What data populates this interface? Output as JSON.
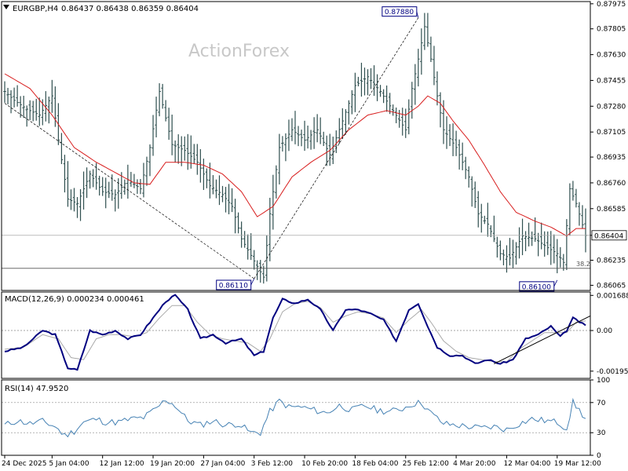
{
  "header": {
    "symbol": "EURGBP,H4",
    "ohlc": "0.86437 0.86438 0.86359 0.86404",
    "watermark": "ActionForex"
  },
  "colors": {
    "candle": "#2f4f4f",
    "ma": "#d81e1e",
    "macd": "#000080",
    "signal": "#a9a9a9",
    "rsi": "#4682b4",
    "grid": "#888888",
    "label_box": "#000080",
    "trendline": "#000000"
  },
  "chart_data": [
    {
      "type": "line",
      "name": "price",
      "label": "EURGBP,H4",
      "ylim": [
        0.8603,
        0.8799
      ],
      "y_ticks": [
        "0.87975",
        "0.87805",
        "0.87630",
        "0.87455",
        "0.87280",
        "0.87105",
        "0.86935",
        "0.86760",
        "0.86585",
        "0.86404",
        "0.86235",
        "0.86065"
      ],
      "y_tick_values": [
        0.87975,
        0.87805,
        0.8763,
        0.87455,
        0.8728,
        0.87105,
        0.86935,
        0.8676,
        0.86585,
        0.86404,
        0.86235,
        0.86065
      ],
      "current_price": "0.86404",
      "current_value": 0.86404,
      "x_labels": [
        "24 Dec 2025",
        "5 Jan 04:00",
        "12 Jan 12:00",
        "19 Jan 20:00",
        "27 Jan 04:00",
        "3 Feb 12:00",
        "10 Feb 20:00",
        "18 Feb 04:00",
        "25 Feb 12:00",
        "4 Mar 20:00",
        "12 Mar 04:00",
        "19 Mar 12:00"
      ],
      "x_label_index": [
        0,
        15,
        31,
        47,
        63,
        79,
        95,
        111,
        127,
        143,
        159,
        175
      ],
      "n_bars": 185,
      "close_anchors": [
        [
          0,
          0.8738
        ],
        [
          3,
          0.8732
        ],
        [
          7,
          0.8726
        ],
        [
          11,
          0.8722
        ],
        [
          15,
          0.8735
        ],
        [
          17,
          0.8705
        ],
        [
          20,
          0.8665
        ],
        [
          23,
          0.8662
        ],
        [
          27,
          0.8682
        ],
        [
          31,
          0.867
        ],
        [
          35,
          0.8668
        ],
        [
          39,
          0.8678
        ],
        [
          43,
          0.8672
        ],
        [
          46,
          0.87
        ],
        [
          49,
          0.8738
        ],
        [
          53,
          0.8702
        ],
        [
          57,
          0.8698
        ],
        [
          61,
          0.869
        ],
        [
          65,
          0.8674
        ],
        [
          69,
          0.8668
        ],
        [
          72,
          0.866
        ],
        [
          75,
          0.8638
        ],
        [
          79,
          0.8623
        ],
        [
          82,
          0.8612
        ],
        [
          84,
          0.8655
        ],
        [
          87,
          0.87
        ],
        [
          91,
          0.8712
        ],
        [
          95,
          0.8705
        ],
        [
          99,
          0.8712
        ],
        [
          103,
          0.8695
        ],
        [
          107,
          0.8718
        ],
        [
          111,
          0.8742
        ],
        [
          115,
          0.8748
        ],
        [
          119,
          0.8738
        ],
        [
          123,
          0.8725
        ],
        [
          127,
          0.8712
        ],
        [
          129,
          0.874
        ],
        [
          131,
          0.876
        ],
        [
          133,
          0.8782
        ],
        [
          135,
          0.876
        ],
        [
          137,
          0.8735
        ],
        [
          139,
          0.8712
        ],
        [
          143,
          0.87
        ],
        [
          147,
          0.868
        ],
        [
          150,
          0.8655
        ],
        [
          153,
          0.8648
        ],
        [
          157,
          0.8628
        ],
        [
          160,
          0.8625
        ],
        [
          164,
          0.864
        ],
        [
          168,
          0.8638
        ],
        [
          172,
          0.8632
        ],
        [
          175,
          0.8628
        ],
        [
          177,
          0.8622
        ],
        [
          179,
          0.8672
        ],
        [
          181,
          0.8662
        ],
        [
          184,
          0.86404
        ]
      ],
      "moving_average_anchors": [
        [
          0,
          0.875
        ],
        [
          8,
          0.874
        ],
        [
          15,
          0.8722
        ],
        [
          22,
          0.87
        ],
        [
          29,
          0.869
        ],
        [
          35,
          0.8683
        ],
        [
          41,
          0.8676
        ],
        [
          46,
          0.8675
        ],
        [
          51,
          0.869
        ],
        [
          57,
          0.869
        ],
        [
          63,
          0.8688
        ],
        [
          69,
          0.8682
        ],
        [
          75,
          0.867
        ],
        [
          80,
          0.8653
        ],
        [
          85,
          0.866
        ],
        [
          91,
          0.868
        ],
        [
          97,
          0.869
        ],
        [
          103,
          0.8698
        ],
        [
          109,
          0.8712
        ],
        [
          115,
          0.8722
        ],
        [
          121,
          0.8725
        ],
        [
          127,
          0.8722
        ],
        [
          131,
          0.8728
        ],
        [
          134,
          0.8735
        ],
        [
          138,
          0.873
        ],
        [
          142,
          0.8718
        ],
        [
          147,
          0.8705
        ],
        [
          152,
          0.8688
        ],
        [
          157,
          0.867
        ],
        [
          162,
          0.8656
        ],
        [
          168,
          0.865
        ],
        [
          173,
          0.8646
        ],
        [
          178,
          0.864
        ],
        [
          181,
          0.8645
        ],
        [
          184,
          0.8645
        ]
      ],
      "annotations": [
        {
          "label": "0.87880",
          "index": 131,
          "value": 0.8788
        },
        {
          "label": "0.86110",
          "index": 79,
          "value": 0.8611
        },
        {
          "label": "0.86100",
          "index": 175,
          "value": 0.861
        }
      ],
      "fib_label": "38.2",
      "fib_value": 0.8618,
      "dashed_lines": [
        {
          "from": [
            0,
            0.873
          ],
          "to": [
            79,
            0.8611
          ]
        },
        {
          "from": [
            79,
            0.8611
          ],
          "to": [
            131,
            0.8788
          ]
        }
      ]
    },
    {
      "type": "line",
      "name": "MACD(12,26,9)",
      "header": "MACD(12,26,9) 0.000234 0.000461",
      "ylim": [
        -0.0023,
        0.00185
      ],
      "y_ticks": [
        "0.001688",
        "0.00",
        "-0.001953"
      ],
      "y_tick_values": [
        0.001688,
        0.0,
        -0.001953
      ],
      "macd_anchors": [
        [
          0,
          -0.001
        ],
        [
          6,
          -0.0008
        ],
        [
          12,
          0.0
        ],
        [
          16,
          -0.0002
        ],
        [
          20,
          -0.0018
        ],
        [
          23,
          -0.0019
        ],
        [
          27,
          0.0
        ],
        [
          31,
          -0.0002
        ],
        [
          35,
          0.0
        ],
        [
          39,
          -0.0004
        ],
        [
          43,
          -0.0002
        ],
        [
          47,
          0.0006
        ],
        [
          51,
          0.0014
        ],
        [
          54,
          0.0017
        ],
        [
          58,
          0.001
        ],
        [
          62,
          -0.0004
        ],
        [
          66,
          -0.0002
        ],
        [
          70,
          -0.0006
        ],
        [
          75,
          -0.0004
        ],
        [
          79,
          -0.0012
        ],
        [
          82,
          -0.001
        ],
        [
          85,
          0.0006
        ],
        [
          88,
          0.0015
        ],
        [
          92,
          0.0013
        ],
        [
          96,
          0.0015
        ],
        [
          100,
          0.001
        ],
        [
          104,
          0.0
        ],
        [
          108,
          0.001
        ],
        [
          112,
          0.001
        ],
        [
          116,
          0.0008
        ],
        [
          120,
          0.0005
        ],
        [
          124,
          -0.0005
        ],
        [
          128,
          0.001
        ],
        [
          131,
          0.0013
        ],
        [
          134,
          0.0002
        ],
        [
          137,
          -0.0008
        ],
        [
          141,
          -0.0012
        ],
        [
          145,
          -0.0012
        ],
        [
          149,
          -0.0016
        ],
        [
          153,
          -0.0014
        ],
        [
          157,
          -0.0016
        ],
        [
          161,
          -0.0014
        ],
        [
          165,
          -0.0004
        ],
        [
          169,
          -0.0002
        ],
        [
          173,
          0.0002
        ],
        [
          176,
          -0.0003
        ],
        [
          178,
          0.0
        ],
        [
          180,
          0.0006
        ],
        [
          184,
          0.000234
        ]
      ],
      "signal_anchors": [
        [
          0,
          -0.0009
        ],
        [
          6,
          -0.0008
        ],
        [
          12,
          -0.0002
        ],
        [
          17,
          -0.0004
        ],
        [
          21,
          -0.0013
        ],
        [
          25,
          -0.0014
        ],
        [
          29,
          -0.0004
        ],
        [
          33,
          -0.0002
        ],
        [
          37,
          -0.0002
        ],
        [
          41,
          -0.0003
        ],
        [
          45,
          -0.0001
        ],
        [
          49,
          0.0006
        ],
        [
          53,
          0.0012
        ],
        [
          57,
          0.0012
        ],
        [
          61,
          0.0004
        ],
        [
          65,
          -0.0002
        ],
        [
          69,
          -0.0004
        ],
        [
          73,
          -0.0005
        ],
        [
          77,
          -0.0006
        ],
        [
          81,
          -0.001
        ],
        [
          84,
          -0.0004
        ],
        [
          88,
          0.0009
        ],
        [
          92,
          0.0013
        ],
        [
          96,
          0.0014
        ],
        [
          100,
          0.0011
        ],
        [
          104,
          0.0004
        ],
        [
          108,
          0.0007
        ],
        [
          112,
          0.0009
        ],
        [
          116,
          0.0008
        ],
        [
          120,
          0.0006
        ],
        [
          124,
          -0.0001
        ],
        [
          128,
          0.0005
        ],
        [
          132,
          0.001
        ],
        [
          135,
          0.0004
        ],
        [
          139,
          -0.0005
        ],
        [
          143,
          -0.001
        ],
        [
          147,
          -0.0013
        ],
        [
          151,
          -0.0014
        ],
        [
          155,
          -0.0015
        ],
        [
          159,
          -0.0015
        ],
        [
          163,
          -0.0009
        ],
        [
          167,
          -0.0005
        ],
        [
          171,
          -0.0001
        ],
        [
          175,
          -0.0001
        ],
        [
          178,
          -0.0001
        ],
        [
          181,
          0.0004
        ],
        [
          184,
          0.000461
        ]
      ],
      "support_line": {
        "from": [
          155,
          -0.0016
        ],
        "to": [
          184,
          -0.0001
        ]
      }
    },
    {
      "type": "line",
      "name": "RSI(14)",
      "header": "RSI(14) 47.9520",
      "ylim": [
        0,
        100
      ],
      "y_ticks": [
        "100",
        "70",
        "30",
        "0"
      ],
      "y_tick_values": [
        100,
        70,
        30,
        0
      ],
      "rsi_anchors": [
        [
          0,
          40
        ],
        [
          4,
          46
        ],
        [
          8,
          42
        ],
        [
          12,
          45
        ],
        [
          16,
          38
        ],
        [
          19,
          26
        ],
        [
          22,
          32
        ],
        [
          25,
          44
        ],
        [
          29,
          48
        ],
        [
          32,
          44
        ],
        [
          36,
          44
        ],
        [
          40,
          48
        ],
        [
          44,
          50
        ],
        [
          48,
          62
        ],
        [
          51,
          74
        ],
        [
          54,
          66
        ],
        [
          58,
          46
        ],
        [
          62,
          40
        ],
        [
          66,
          46
        ],
        [
          70,
          40
        ],
        [
          74,
          42
        ],
        [
          78,
          30
        ],
        [
          81,
          30
        ],
        [
          84,
          58
        ],
        [
          87,
          72
        ],
        [
          90,
          64
        ],
        [
          94,
          64
        ],
        [
          98,
          60
        ],
        [
          102,
          56
        ],
        [
          106,
          66
        ],
        [
          110,
          60
        ],
        [
          114,
          66
        ],
        [
          118,
          60
        ],
        [
          122,
          58
        ],
        [
          126,
          62
        ],
        [
          129,
          68
        ],
        [
          132,
          70
        ],
        [
          135,
          56
        ],
        [
          139,
          42
        ],
        [
          143,
          40
        ],
        [
          147,
          38
        ],
        [
          151,
          36
        ],
        [
          155,
          38
        ],
        [
          159,
          34
        ],
        [
          163,
          42
        ],
        [
          167,
          48
        ],
        [
          171,
          46
        ],
        [
          175,
          44
        ],
        [
          178,
          36
        ],
        [
          180,
          70
        ],
        [
          182,
          60
        ],
        [
          184,
          47.95
        ]
      ]
    }
  ]
}
